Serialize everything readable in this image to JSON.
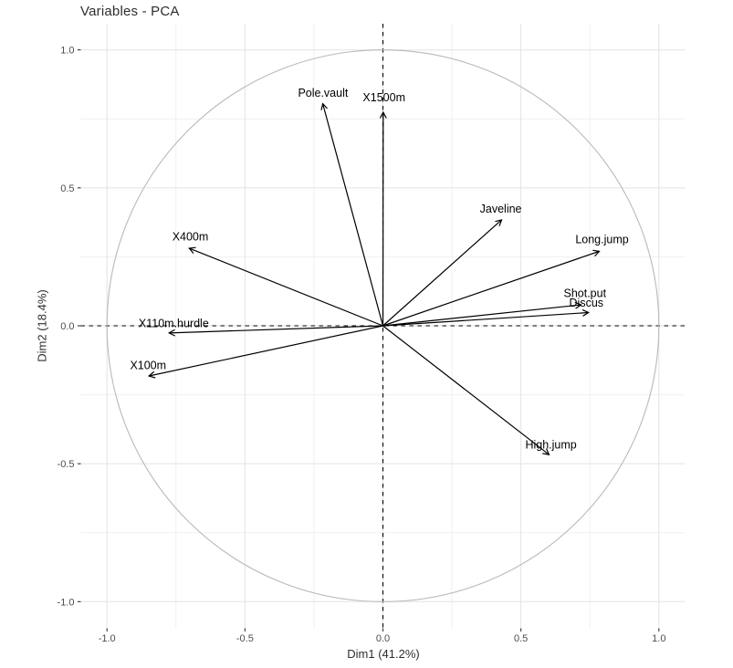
{
  "page": {
    "background": "#ffffff"
  },
  "chart_data": {
    "type": "scatter",
    "subtype": "pca-variables-correlation-circle",
    "title": "Variables - PCA",
    "xlabel": "Dim1 (41.2%)",
    "ylabel": "Dim2 (18.4%)",
    "xlim": [
      -1.095,
      1.095
    ],
    "ylim": [
      -1.095,
      1.095
    ],
    "x_ticks": [
      -1.0,
      -0.5,
      0.0,
      0.5,
      1.0
    ],
    "y_ticks": [
      -1.0,
      -0.5,
      0.0,
      0.5,
      1.0
    ],
    "x_tick_labels": [
      "-1.0",
      "-0.5",
      "0.0",
      "0.5",
      "1.0"
    ],
    "y_tick_labels": [
      "-1.0",
      "-0.5",
      "0.0",
      "0.5",
      "1.0"
    ],
    "minor_ticks": [
      -0.75,
      -0.25,
      0.25,
      0.75
    ],
    "grid": true,
    "unit_circle": true,
    "dashed_axes_through_origin": true,
    "legend": "none",
    "variables": [
      {
        "name": "Pole.vault",
        "x": -0.218,
        "y": 0.805,
        "label_x": -0.217,
        "label_y": 0.845
      },
      {
        "name": "X1500m",
        "x": 0.001,
        "y": 0.774,
        "label_x": 0.004,
        "label_y": 0.829
      },
      {
        "name": "Javeline",
        "x": 0.43,
        "y": 0.384,
        "label_x": 0.427,
        "label_y": 0.424
      },
      {
        "name": "Long.jump",
        "x": 0.784,
        "y": 0.27,
        "label_x": 0.794,
        "label_y": 0.314
      },
      {
        "name": "Shot.put",
        "x": 0.718,
        "y": 0.076,
        "label_x": 0.732,
        "label_y": 0.118
      },
      {
        "name": "Discus",
        "x": 0.745,
        "y": 0.048,
        "label_x": 0.737,
        "label_y": 0.084
      },
      {
        "name": "High.jump",
        "x": 0.602,
        "y": -0.467,
        "label_x": 0.609,
        "label_y": -0.43
      },
      {
        "name": "X400m",
        "x": -0.702,
        "y": 0.281,
        "label_x": -0.698,
        "label_y": 0.324
      },
      {
        "name": "X110m.hurdle",
        "x": -0.775,
        "y": -0.026,
        "label_x": -0.758,
        "label_y": 0.01
      },
      {
        "name": "X100m",
        "x": -0.848,
        "y": -0.182,
        "label_x": -0.851,
        "label_y": -0.142
      }
    ]
  },
  "colors": {
    "background": "#ffffff",
    "grid_major": "#e3e3e3",
    "grid_minor": "#f0f0f0",
    "circle": "#b9b9b9",
    "arrow": "#000000",
    "dashed_axes": "#000000",
    "variable_label": "#000000",
    "tick_label": "#4d4d4d",
    "tick_mark": "#333333",
    "title_text": "#2e2e2e"
  }
}
